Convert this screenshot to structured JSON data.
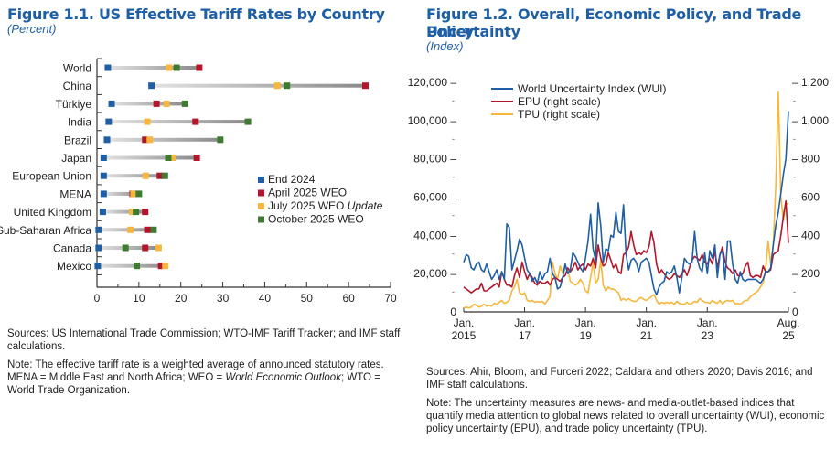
{
  "figure1": {
    "title": "Figure 1.1.  US Effective Tariff Rates by Country",
    "subtitle": "(Percent)",
    "sources": "Sources: US International Trade Commission; WTO-IMF Tariff Tracker; and IMF staff calculations.",
    "note_prefix": "Note: The effective tariff rate is a weighted average of announced statutory rates. MENA  = Middle East and North Africa; WEO = ",
    "note_italic": "World Economic Outlook",
    "note_suffix": "; WTO = World Trade Organization."
  },
  "figure2": {
    "title_line1": "Figure 1.2.  Overall, Economic Policy, and Trade Policy",
    "title_line2": "Uncertainty",
    "subtitle": "(Index)",
    "sources": "Sources: Ahir, Bloom, and Furceri 2022; Caldara and others 2020; Davis 2016; and IMF staff calculations.",
    "note": "Note: The uncertainty measures are news- and media-outlet-based indices that quantify media attention to global news related to overall uncertainty (WUI), economic policy uncertainty (EPU), and trade policy uncertainty (TPU)."
  },
  "chart_data": [
    {
      "type": "scatter",
      "title": "US Effective Tariff Rates by Country",
      "xlabel": "Percent",
      "xlim": [
        0,
        70
      ],
      "xticks": [
        0,
        10,
        20,
        30,
        40,
        50,
        60,
        70
      ],
      "legend_position": "right-middle",
      "categories": [
        "World",
        "China",
        "Türkiye",
        "India",
        "Brazil",
        "Japan",
        "European Union",
        "MENA",
        "United Kingdom",
        "Sub-Saharan Africa",
        "Canada",
        "Mexico"
      ],
      "series": [
        {
          "name": "End 2024",
          "color": "#1f5fa6",
          "values": [
            2.6,
            13.0,
            3.5,
            2.8,
            2.4,
            1.6,
            1.6,
            1.6,
            1.4,
            0.4,
            0.4,
            0.2
          ]
        },
        {
          "name": "April 2025 WEO",
          "color": "#b5152b",
          "values": [
            24.4,
            64.0,
            14.2,
            23.5,
            11.5,
            23.8,
            15.0,
            8.5,
            11.5,
            12.0,
            11.5,
            15.3
          ]
        },
        {
          "name": "July 2025 WEO ",
          "name_italic": "Update",
          "color": "#f6b73c",
          "values": [
            17.2,
            43.0,
            16.6,
            12.0,
            12.6,
            18.0,
            11.6,
            8.7,
            8.4,
            8.0,
            14.7,
            16.3
          ]
        },
        {
          "name": "October 2025 WEO",
          "color": "#3e7a2f",
          "values": [
            19.0,
            45.3,
            21.0,
            36.0,
            29.4,
            17.0,
            16.2,
            10.0,
            9.3,
            13.5,
            6.8,
            9.5
          ]
        }
      ]
    },
    {
      "type": "line",
      "title": "Overall, Economic Policy, and Trade Policy Uncertainty",
      "ylabel": "Index",
      "x_start": "2015-01",
      "x_end": "2025-08",
      "xticks": [
        {
          "line1": "Jan.",
          "line2": "2015"
        },
        {
          "line1": "Jan.",
          "line2": "17"
        },
        {
          "line1": "Jan.",
          "line2": "19"
        },
        {
          "line1": "Jan.",
          "line2": "21"
        },
        {
          "line1": "Jan.",
          "line2": "23"
        },
        {
          "line1": "Aug.",
          "line2": "25"
        }
      ],
      "ylim_left": [
        0,
        120000
      ],
      "yticks_left": [
        "0",
        "20,000",
        "40,000",
        "60,000",
        "80,000",
        "100,000",
        "120,000"
      ],
      "ylim_right": [
        0,
        1200
      ],
      "yticks_right": [
        "0",
        "200",
        "400",
        "600",
        "800",
        "1,000",
        "1,200"
      ],
      "legend_position": "top-left",
      "series": [
        {
          "name": "World Uncertainty Index (WUI)",
          "axis": "left",
          "color": "#1f5fa6",
          "values": [
            26000,
            30000,
            29000,
            23000,
            22000,
            25000,
            26000,
            22000,
            21000,
            25000,
            21000,
            17000,
            19000,
            22000,
            17000,
            21000,
            17000,
            46000,
            44000,
            22000,
            27000,
            32000,
            38000,
            35000,
            28000,
            22000,
            20000,
            16000,
            18000,
            15000,
            21000,
            17000,
            20000,
            21000,
            28000,
            20000,
            18000,
            12000,
            13000,
            18000,
            25000,
            20000,
            22000,
            31000,
            29000,
            26000,
            23000,
            21000,
            28000,
            37000,
            51000,
            33000,
            27000,
            57000,
            45000,
            26000,
            33000,
            32000,
            40000,
            39000,
            52000,
            42000,
            41000,
            56000,
            30000,
            22000,
            27000,
            28000,
            26000,
            21000,
            26000,
            27000,
            28000,
            26000,
            19000,
            12000,
            9000,
            13000,
            15000,
            16000,
            21000,
            20000,
            21000,
            24000,
            18000,
            10000,
            18000,
            28000,
            26000,
            25000,
            26000,
            42000,
            28000,
            23000,
            21000,
            31000,
            20000,
            32000,
            28000,
            35000,
            18000,
            30000,
            32000,
            17000,
            37000,
            37000,
            25000,
            17000,
            15000,
            21000,
            17000,
            16000,
            17000,
            17000,
            17000,
            17000,
            16000,
            15000,
            17000,
            21000,
            21000,
            23000,
            35000,
            45000,
            52000,
            62000,
            72000,
            80000,
            105000
          ]
        },
        {
          "name": "EPU (right scale)",
          "axis": "right",
          "color": "#b5152b",
          "values": [
            130,
            120,
            110,
            100,
            110,
            120,
            120,
            150,
            110,
            110,
            120,
            130,
            140,
            150,
            130,
            210,
            170,
            140,
            140,
            130,
            190,
            230,
            180,
            260,
            210,
            170,
            200,
            180,
            150,
            140,
            160,
            150,
            150,
            160,
            140,
            170,
            180,
            170,
            160,
            180,
            190,
            230,
            210,
            230,
            260,
            220,
            240,
            250,
            220,
            250,
            240,
            280,
            230,
            350,
            280,
            240,
            250,
            310,
            270,
            230,
            250,
            210,
            200,
            300,
            310,
            340,
            420,
            350,
            300,
            310,
            300,
            320,
            310,
            340,
            420,
            360,
            250,
            200,
            220,
            200,
            180,
            170,
            180,
            200,
            190,
            180,
            200,
            220,
            190,
            230,
            270,
            290,
            280,
            270,
            300,
            260,
            250,
            280,
            250,
            320,
            230,
            300,
            340,
            260,
            230,
            220,
            200,
            220,
            190,
            190,
            200,
            240,
            260,
            190,
            180,
            190,
            190,
            180,
            240,
            210,
            210,
            220,
            300,
            310,
            320,
            400,
            500,
            580,
            360
          ]
        },
        {
          "name": "TPU (right scale)",
          "axis": "right",
          "color": "#f6b73c",
          "values": [
            20,
            25,
            20,
            25,
            40,
            35,
            25,
            30,
            40,
            30,
            35,
            30,
            45,
            40,
            50,
            60,
            45,
            50,
            60,
            110,
            130,
            170,
            100,
            90,
            100,
            60,
            55,
            60,
            50,
            55,
            50,
            55,
            40,
            60,
            80,
            260,
            200,
            170,
            240,
            200,
            230,
            220,
            160,
            150,
            140,
            150,
            170,
            150,
            110,
            100,
            180,
            260,
            150,
            170,
            270,
            140,
            110,
            130,
            120,
            120,
            110,
            100,
            60,
            70,
            60,
            70,
            60,
            55,
            55,
            70,
            75,
            65,
            60,
            70,
            80,
            90,
            60,
            40,
            50,
            45,
            50,
            45,
            50,
            40,
            55,
            45,
            40,
            40,
            50,
            40,
            45,
            55,
            50,
            70,
            60,
            50,
            50,
            45,
            60,
            50,
            45,
            60,
            40,
            55,
            60,
            55,
            60,
            40,
            45,
            40,
            50,
            60,
            60,
            80,
            90,
            100,
            110,
            130,
            150,
            220,
            370,
            250,
            350,
            650,
            1150,
            600,
            480,
            560,
            570
          ]
        }
      ]
    }
  ]
}
